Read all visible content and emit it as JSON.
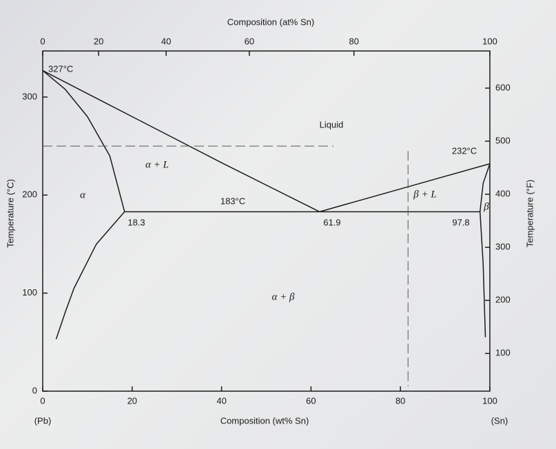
{
  "chart_data": {
    "type": "phase-diagram",
    "title": "Composition (at% Sn)",
    "x_label": "Composition (wt% Sn)",
    "y_label": "Temperature (°C)",
    "y2_label": "Temperature (°F)",
    "left_end": "(Pb)",
    "right_end": "(Sn)",
    "xlim": [
      0,
      100
    ],
    "xticks": [
      0,
      20,
      40,
      60,
      80,
      100
    ],
    "ylim": [
      0,
      347
    ],
    "yticks": [
      0,
      100,
      200,
      300
    ],
    "y2lim": [
      29,
      670
    ],
    "y2ticks": [
      100,
      200,
      300,
      400,
      500,
      600
    ],
    "x2ticks": [
      0,
      20,
      40,
      60,
      80,
      100
    ],
    "x2tick_wt_positions": [
      0,
      12.5,
      27.6,
      46.2,
      69.6,
      100
    ],
    "color": "#1a1a1a",
    "boundaries": [
      {
        "x": [
          0,
          20,
          40,
          61.9
        ],
        "y": [
          327,
          280,
          233,
          183
        ]
      },
      {
        "x": [
          61.9,
          100
        ],
        "y": [
          183,
          232
        ]
      },
      {
        "x": [
          0,
          5,
          10,
          15,
          18.3
        ],
        "y": [
          327,
          308,
          280,
          240,
          183
        ]
      },
      {
        "x": [
          18.3,
          97.8
        ],
        "y": [
          183,
          183
        ]
      },
      {
        "x": [
          3,
          5,
          7,
          12,
          18.3
        ],
        "y": [
          53,
          80,
          105,
          150,
          183
        ]
      },
      {
        "x": [
          100,
          98.5,
          97.8
        ],
        "y": [
          232,
          212,
          183
        ]
      },
      {
        "x": [
          97.8,
          98.5,
          99
        ],
        "y": [
          183,
          130,
          55
        ]
      }
    ],
    "dashed_lines": [
      {
        "x": [
          0,
          65
        ],
        "y": [
          250,
          250
        ]
      },
      {
        "x": [
          81.7,
          81.7
        ],
        "y": [
          245,
          5
        ]
      }
    ],
    "annotations": [
      "327°C",
      "Liquid",
      "α + L",
      "α",
      "183°C",
      "18.3",
      "61.9",
      "β + L",
      "232°C",
      "97.8",
      "β",
      "α + β"
    ]
  }
}
